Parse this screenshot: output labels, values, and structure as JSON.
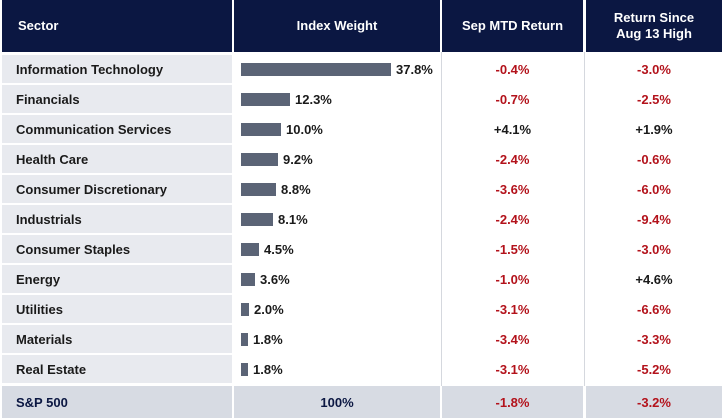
{
  "headers": {
    "sector": "Sector",
    "weight": "Index Weight",
    "mtd": "Sep MTD Return",
    "since_line1": "Return Since",
    "since_line2": "Aug 13 High"
  },
  "rows": [
    {
      "sector": "Information Technology",
      "weight": "37.8%",
      "weight_value": 37.8,
      "mtd": "-0.4%",
      "since": "-3.0%"
    },
    {
      "sector": "Financials",
      "weight": "12.3%",
      "weight_value": 12.3,
      "mtd": "-0.7%",
      "since": "-2.5%"
    },
    {
      "sector": "Communication Services",
      "weight": "10.0%",
      "weight_value": 10.0,
      "mtd": "+4.1%",
      "since": "+1.9%"
    },
    {
      "sector": "Health Care",
      "weight": "9.2%",
      "weight_value": 9.2,
      "mtd": "-2.4%",
      "since": "-0.6%"
    },
    {
      "sector": "Consumer Discretionary",
      "weight": "8.8%",
      "weight_value": 8.8,
      "mtd": "-3.6%",
      "since": "-6.0%"
    },
    {
      "sector": "Industrials",
      "weight": "8.1%",
      "weight_value": 8.1,
      "mtd": "-2.4%",
      "since": "-9.4%"
    },
    {
      "sector": "Consumer Staples",
      "weight": "4.5%",
      "weight_value": 4.5,
      "mtd": "-1.5%",
      "since": "-3.0%"
    },
    {
      "sector": "Energy",
      "weight": "3.6%",
      "weight_value": 3.6,
      "mtd": "-1.0%",
      "since": "+4.6%"
    },
    {
      "sector": "Utilities",
      "weight": "2.0%",
      "weight_value": 2.0,
      "mtd": "-3.1%",
      "since": "-6.6%"
    },
    {
      "sector": "Materials",
      "weight": "1.8%",
      "weight_value": 1.8,
      "mtd": "-3.4%",
      "since": "-3.3%"
    },
    {
      "sector": "Real Estate",
      "weight": "1.8%",
      "weight_value": 1.8,
      "mtd": "-3.1%",
      "since": "-5.2%"
    }
  ],
  "footer": {
    "sector": "S&P 500",
    "weight": "100%",
    "mtd": "-1.8%",
    "since": "-3.2%"
  },
  "colors": {
    "header_bg": "#0b1742",
    "bar": "#5b6476",
    "negative": "#b3121b",
    "positive": "#1a1a1a",
    "sector_bg": "#e8eaef",
    "footer_bg": "#d7dbe3"
  }
}
